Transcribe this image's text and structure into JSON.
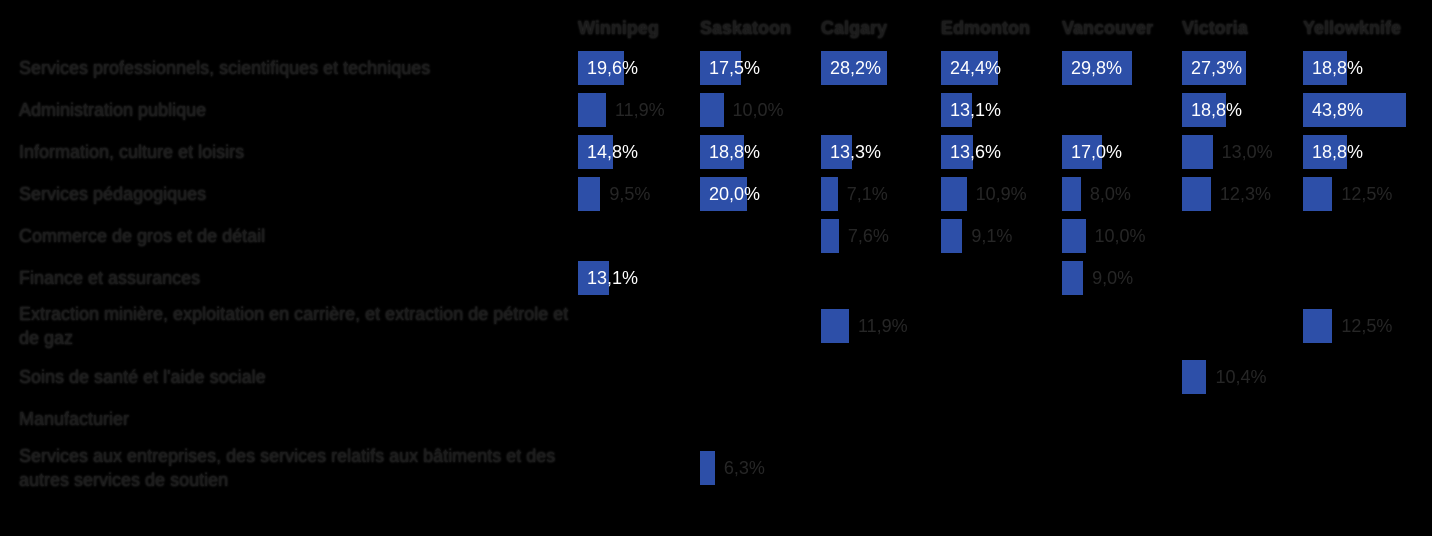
{
  "colors": {
    "bar": "#2d4fa8",
    "background": "#000000"
  },
  "chart_data": {
    "type": "bar",
    "orientation": "horizontal-small-multiples",
    "x": [
      "Winnipeg",
      "Saskatoon",
      "Calgary",
      "Edmonton",
      "Vancouver",
      "Victoria",
      "Yellowknife"
    ],
    "categories": [
      "Services professionnels, scientifiques et techniques",
      "Administration publique",
      "Information, culture et loisirs",
      "Services pédagogiques",
      "Commerce de gros et de détail",
      "Finance et assurances",
      "Extraction minière, exploitation en carrière, et extraction de pétrole et de gaz",
      "Soins de santé et l'aide sociale",
      "Manufacturier",
      "Services aux entreprises, des services relatifs aux bâtiments et des autres services de soutien"
    ],
    "series": [
      {
        "values": [
          19.6,
          11.9,
          14.8,
          9.5,
          null,
          13.1,
          null,
          null,
          null,
          null
        ],
        "labels": [
          "19,6%",
          "11,9%",
          "14,8%",
          "9,5%",
          "",
          "13,1%",
          "",
          "",
          "",
          ""
        ]
      },
      {
        "values": [
          17.5,
          10.0,
          18.8,
          20.0,
          null,
          null,
          null,
          null,
          null,
          6.3
        ],
        "labels": [
          "17,5%",
          "10,0%",
          "18,8%",
          "20,0%",
          "",
          "",
          "",
          "",
          "",
          "6,3%"
        ]
      },
      {
        "values": [
          28.2,
          null,
          13.3,
          7.1,
          7.6,
          null,
          11.9,
          null,
          null,
          null
        ],
        "labels": [
          "28,2%",
          "",
          "13,3%",
          "7,1%",
          "7,6%",
          "",
          "11,9%",
          "",
          "",
          ""
        ]
      },
      {
        "values": [
          24.4,
          13.1,
          13.6,
          10.9,
          9.1,
          null,
          null,
          null,
          null,
          null
        ],
        "labels": [
          "24,4%",
          "13,1%",
          "13,6%",
          "10,9%",
          "9,1%",
          "",
          "",
          "",
          "",
          ""
        ]
      },
      {
        "values": [
          29.8,
          null,
          17.0,
          8.0,
          10.0,
          9.0,
          null,
          null,
          null,
          null
        ],
        "labels": [
          "29,8%",
          "",
          "17,0%",
          "8,0%",
          "10,0%",
          "9,0%",
          "",
          "",
          "",
          ""
        ]
      },
      {
        "values": [
          27.3,
          18.8,
          13.0,
          12.3,
          null,
          null,
          null,
          10.4,
          null,
          null
        ],
        "labels": [
          "27,3%",
          "18,8%",
          "13,0%",
          "12,3%",
          "",
          "",
          "",
          "10,4%",
          "",
          ""
        ]
      },
      {
        "values": [
          18.8,
          43.8,
          18.8,
          12.5,
          null,
          null,
          12.5,
          null,
          null,
          null
        ],
        "labels": [
          "18,8%",
          "43,8%",
          "18,8%",
          "12,5%",
          "",
          "",
          "12,5%",
          "",
          "",
          ""
        ]
      }
    ],
    "xlim": [
      0,
      43.8
    ],
    "grid": false,
    "legend": "none"
  }
}
